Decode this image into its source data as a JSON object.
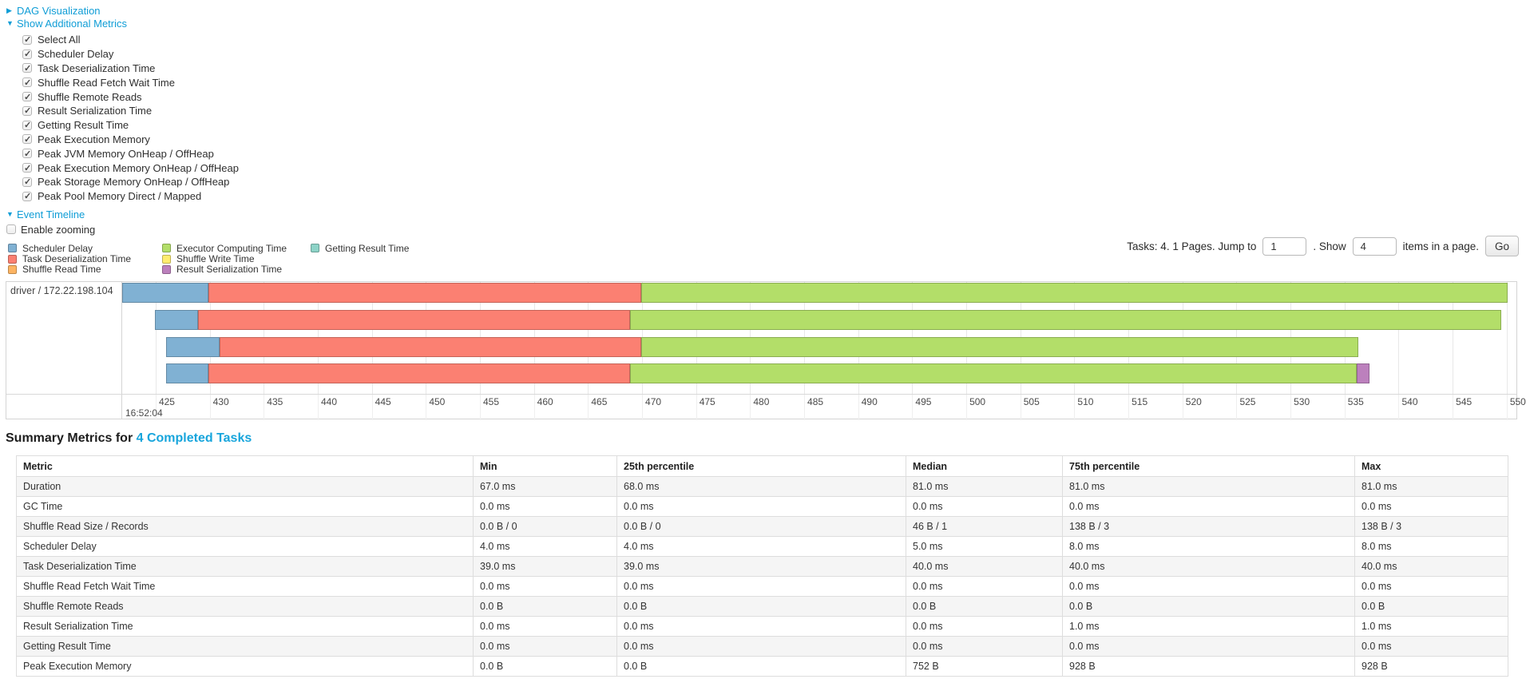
{
  "colors": {
    "link": "#0f9dd6",
    "heading_link": "#17a5dc",
    "scheduler_delay": "#80B1D3",
    "task_deserialization": "#FB8072",
    "shuffle_read": "#FDB462",
    "executor_computing": "#B3DE69",
    "shuffle_write": "#FFED6F",
    "result_serialization": "#BC80BD",
    "getting_result": "#8DD3C7"
  },
  "toggles": {
    "dag": "DAG Visualization",
    "metrics": "Show Additional Metrics",
    "timeline": "Event Timeline",
    "enable_zooming": "Enable zooming"
  },
  "metric_checkboxes": [
    "Select All",
    "Scheduler Delay",
    "Task Deserialization Time",
    "Shuffle Read Fetch Wait Time",
    "Shuffle Remote Reads",
    "Result Serialization Time",
    "Getting Result Time",
    "Peak Execution Memory",
    "Peak JVM Memory OnHeap / OffHeap",
    "Peak Execution Memory OnHeap / OffHeap",
    "Peak Storage Memory OnHeap / OffHeap",
    "Peak Pool Memory Direct / Mapped"
  ],
  "legend_columns": [
    [
      {
        "label": "Scheduler Delay",
        "kind": "scheduler_delay"
      },
      {
        "label": "Task Deserialization Time",
        "kind": "task_deserialization"
      },
      {
        "label": "Shuffle Read Time",
        "kind": "shuffle_read"
      }
    ],
    [
      {
        "label": "Executor Computing Time",
        "kind": "executor_computing"
      },
      {
        "label": "Shuffle Write Time",
        "kind": "shuffle_write"
      },
      {
        "label": "Result Serialization Time",
        "kind": "result_serialization"
      }
    ],
    [
      {
        "label": "Getting Result Time",
        "kind": "getting_result"
      }
    ]
  ],
  "pagination": {
    "tasks_text": "Tasks: 4. 1 Pages. Jump to",
    "jump_value": "1",
    "show_label": ". Show",
    "show_value": "4",
    "suffix": "items in a page.",
    "go": "Go"
  },
  "chart_data": {
    "type": "timeline",
    "title": "Event Timeline",
    "group_label": "driver / 172.22.198.104",
    "time_label": "16:52:04",
    "axis": {
      "min": 421.9,
      "max": 550.9,
      "tick_first": 425,
      "tick_last": 550,
      "tick_step": 5
    },
    "tasks": [
      {
        "segments": [
          {
            "kind": "scheduler_delay",
            "start": 421.9,
            "end": 429.9
          },
          {
            "kind": "task_deserialization",
            "start": 429.9,
            "end": 469.9
          },
          {
            "kind": "executor_computing",
            "start": 469.9,
            "end": 550.1
          }
        ]
      },
      {
        "segments": [
          {
            "kind": "scheduler_delay",
            "start": 424.9,
            "end": 428.9
          },
          {
            "kind": "task_deserialization",
            "start": 428.9,
            "end": 468.9
          },
          {
            "kind": "executor_computing",
            "start": 468.9,
            "end": 549.5
          }
        ]
      },
      {
        "segments": [
          {
            "kind": "scheduler_delay",
            "start": 426.0,
            "end": 430.9
          },
          {
            "kind": "task_deserialization",
            "start": 430.9,
            "end": 469.9
          },
          {
            "kind": "executor_computing",
            "start": 469.9,
            "end": 536.3
          }
        ]
      },
      {
        "segments": [
          {
            "kind": "scheduler_delay",
            "start": 426.0,
            "end": 429.9
          },
          {
            "kind": "task_deserialization",
            "start": 429.9,
            "end": 468.9
          },
          {
            "kind": "executor_computing",
            "start": 468.9,
            "end": 536.1
          },
          {
            "kind": "result_serialization",
            "start": 536.1,
            "end": 537.3
          }
        ]
      }
    ]
  },
  "summary": {
    "title_prefix": "Summary Metrics for ",
    "title_link": "4 Completed Tasks",
    "columns": [
      "Metric",
      "Min",
      "25th percentile",
      "Median",
      "75th percentile",
      "Max"
    ],
    "rows": [
      [
        "Duration",
        "67.0 ms",
        "68.0 ms",
        "81.0 ms",
        "81.0 ms",
        "81.0 ms"
      ],
      [
        "GC Time",
        "0.0 ms",
        "0.0 ms",
        "0.0 ms",
        "0.0 ms",
        "0.0 ms"
      ],
      [
        "Shuffle Read Size / Records",
        "0.0 B / 0",
        "0.0 B / 0",
        "46 B / 1",
        "138 B / 3",
        "138 B / 3"
      ],
      [
        "Scheduler Delay",
        "4.0 ms",
        "4.0 ms",
        "5.0 ms",
        "8.0 ms",
        "8.0 ms"
      ],
      [
        "Task Deserialization Time",
        "39.0 ms",
        "39.0 ms",
        "40.0 ms",
        "40.0 ms",
        "40.0 ms"
      ],
      [
        "Shuffle Read Fetch Wait Time",
        "0.0 ms",
        "0.0 ms",
        "0.0 ms",
        "0.0 ms",
        "0.0 ms"
      ],
      [
        "Shuffle Remote Reads",
        "0.0 B",
        "0.0 B",
        "0.0 B",
        "0.0 B",
        "0.0 B"
      ],
      [
        "Result Serialization Time",
        "0.0 ms",
        "0.0 ms",
        "0.0 ms",
        "1.0 ms",
        "1.0 ms"
      ],
      [
        "Getting Result Time",
        "0.0 ms",
        "0.0 ms",
        "0.0 ms",
        "0.0 ms",
        "0.0 ms"
      ],
      [
        "Peak Execution Memory",
        "0.0 B",
        "0.0 B",
        "752 B",
        "928 B",
        "928 B"
      ]
    ]
  }
}
